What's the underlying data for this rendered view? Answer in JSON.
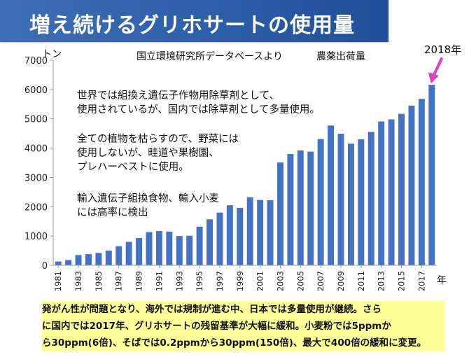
{
  "header": {
    "title": "増え続けるグリホサートの使用量"
  },
  "source_label": "国立環境研究所データベースより",
  "series_label": "農薬出荷量",
  "unit_label": "トン",
  "x_unit_label": "年",
  "callout": {
    "label": "2018年",
    "color": "#e040c0"
  },
  "notes": [
    [
      "世界では組換え遺伝子作物用除草剤として、",
      "使用されているが、国内では除草剤として多量使用。"
    ],
    [
      "全ての植物を枯らすので、野菜には",
      "使用しないが、畦道や果樹園、",
      "プレハーベストに使用。"
    ],
    [
      "輸入遺伝子組換食物、輸入小麦",
      "には高率に検出"
    ]
  ],
  "caption": [
    "発がん性が問題となり、海外では規制が進む中、日本では多量使用が継続。さら",
    "に国内では2017年、グリホサートの残留基準が大幅に緩和。小麦粉では5ppmか",
    "ら30ppm(6倍)、そばでは0.2ppmから30ppm(150倍)、最大で400倍の緩和に変更。"
  ],
  "colors": {
    "bar": "#4472c4",
    "title_bg": "#2d5ea8",
    "caption_bg": "#ffff99",
    "arrow": "#e040c0"
  },
  "chart_data": {
    "type": "bar",
    "x": [
      1981,
      1982,
      1983,
      1984,
      1985,
      1986,
      1987,
      1988,
      1989,
      1990,
      1991,
      1992,
      1993,
      1994,
      1995,
      1996,
      1997,
      1998,
      1999,
      2000,
      2001,
      2002,
      2003,
      2004,
      2005,
      2006,
      2007,
      2008,
      2009,
      2010,
      2011,
      2012,
      2013,
      2014,
      2015,
      2016,
      2017,
      2018
    ],
    "x_tick_labels": [
      "1981",
      "1983",
      "1985",
      "1987",
      "1989",
      "1991",
      "1993",
      "1995",
      "1997",
      "1999",
      "2001",
      "2003",
      "2005",
      "2007",
      "2009",
      "2011",
      "2013",
      "2015",
      "2017"
    ],
    "values": [
      130,
      180,
      350,
      380,
      420,
      500,
      650,
      800,
      930,
      1130,
      1170,
      1150,
      1000,
      1010,
      1320,
      1570,
      1800,
      2050,
      1960,
      2320,
      2230,
      2220,
      3510,
      3800,
      3920,
      3880,
      4310,
      4770,
      4490,
      4150,
      4300,
      4550,
      4910,
      4980,
      5170,
      5450,
      5680,
      6160
    ],
    "ylim": [
      0,
      7000
    ],
    "y_ticks": [
      "0",
      "1000",
      "2000",
      "3000",
      "4000",
      "5000",
      "6000",
      "7000"
    ],
    "grid": false,
    "legend": "none"
  }
}
